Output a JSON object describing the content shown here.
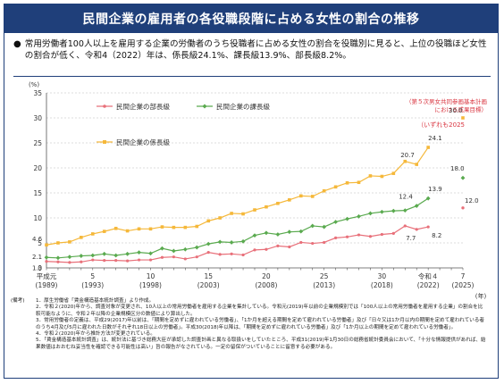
{
  "title": "民間企業の雇用者の各役職段階に占める女性の割合の推移",
  "summary": "常用労働者100人以上を雇用する企業の労働者のうち役職者に占める女性の割合を役職別に見ると、上位の役職ほど女性の割合が低く、令和4（2022）年は、係長級24.1%、課長級13.9%、部長級8.2%。",
  "chart_data": {
    "type": "line",
    "y_unit": "(%)",
    "x_unit": "(年)",
    "ylim": [
      0,
      35
    ],
    "y_ticks": [
      "0",
      "5",
      "10",
      "15",
      "20",
      "25",
      "30",
      "35"
    ],
    "x_ticks": [
      {
        "era": "平成元",
        "year": "(1989)"
      },
      {
        "era": "5",
        "year": "(1993)"
      },
      {
        "era": "10",
        "year": "(1998)"
      },
      {
        "era": "15",
        "year": "(2003)"
      },
      {
        "era": "20",
        "year": "(2008)"
      },
      {
        "era": "25",
        "year": "(2013)"
      },
      {
        "era": "30",
        "year": "(2018)"
      },
      {
        "era": "令和４",
        "year": "(2022)"
      },
      {
        "era": "7",
        "year": "(2025)"
      }
    ],
    "x": [
      1989,
      1990,
      1991,
      1992,
      1993,
      1994,
      1995,
      1996,
      1997,
      1998,
      1999,
      2000,
      2001,
      2002,
      2003,
      2004,
      2005,
      2006,
      2007,
      2008,
      2009,
      2010,
      2011,
      2012,
      2013,
      2014,
      2015,
      2016,
      2017,
      2018,
      2019,
      2020,
      2021,
      2022
    ],
    "series": [
      {
        "name": "民間企業の部長級",
        "color": "#e8707a",
        "values": [
          1.3,
          1.2,
          1.1,
          1.2,
          1.6,
          1.5,
          1.5,
          1.4,
          1.6,
          1.6,
          2.1,
          2.2,
          1.8,
          2.2,
          3.1,
          2.7,
          2.8,
          2.6,
          3.6,
          3.7,
          4.4,
          4.2,
          5.1,
          4.9,
          5.1,
          6.0,
          6.2,
          6.6,
          6.3,
          6.7,
          6.9,
          8.4,
          7.7,
          8.2
        ]
      },
      {
        "name": "民間企業の課長級",
        "color": "#5aaa4f",
        "values": [
          2.1,
          2.0,
          2.2,
          2.4,
          2.5,
          2.8,
          2.5,
          2.8,
          3.1,
          2.9,
          3.9,
          3.4,
          3.7,
          4.1,
          4.8,
          5.2,
          5.1,
          5.3,
          6.5,
          7.0,
          6.7,
          7.2,
          7.3,
          8.4,
          8.2,
          9.2,
          9.8,
          10.3,
          10.9,
          11.2,
          11.4,
          11.5,
          12.4,
          13.9
        ]
      },
      {
        "name": "民間企業の係長級",
        "color": "#f5b83a",
        "values": [
          4.6,
          5.0,
          5.2,
          6.1,
          6.8,
          7.3,
          7.9,
          7.4,
          7.8,
          7.8,
          8.2,
          8.1,
          8.1,
          8.3,
          9.4,
          10.0,
          10.9,
          10.8,
          11.6,
          12.2,
          12.9,
          13.6,
          14.4,
          14.3,
          15.4,
          16.2,
          17.0,
          17.1,
          18.4,
          18.3,
          18.9,
          21.3,
          20.7,
          24.1
        ]
      }
    ],
    "targets": {
      "note_line1": "（第５次男女共同参画基本計画",
      "note_line2": "における成果目標）",
      "note_line3": "（いずれも2025",
      "year": 2025,
      "items": [
        {
          "series": "民間企業の係長級",
          "value": 30.0,
          "label": "30.0"
        },
        {
          "series": "民間企業の課長級",
          "value": 18.0,
          "label": "18.0"
        },
        {
          "series": "民間企業の部長級",
          "value": 12.0,
          "label": "12.0"
        }
      ]
    },
    "data_labels": [
      {
        "text": "4.6",
        "series": 2,
        "index": 0,
        "dx": -16,
        "dy": -4
      },
      {
        "text": "2.1",
        "series": 1,
        "index": 0,
        "dx": -16,
        "dy": 2
      },
      {
        "text": "1.3",
        "series": 0,
        "index": 0,
        "dx": -16,
        "dy": 10
      },
      {
        "text": "20.7",
        "series": 2,
        "index": 32,
        "dx": -18,
        "dy": -8
      },
      {
        "text": "24.1",
        "series": 2,
        "index": 33,
        "dx": 0,
        "dy": -8
      },
      {
        "text": "12.4",
        "series": 1,
        "index": 32,
        "dx": -20,
        "dy": -8
      },
      {
        "text": "13.9",
        "series": 1,
        "index": 33,
        "dx": 0,
        "dy": -8
      },
      {
        "text": "7.7",
        "series": 0,
        "index": 32,
        "dx": -12,
        "dy": 12
      },
      {
        "text": "8.2",
        "series": 0,
        "index": 33,
        "dx": 4,
        "dy": 12
      }
    ]
  },
  "notes": [
    {
      "head": "(備考)",
      "text": "1．厚生労働省「賃金構造基本統計調査」より作成。"
    },
    {
      "head": "",
      "text": "2．令和２(2020)年から、調査対象が変更され、10人以上の常用労働者を雇用する企業を集計している。令和元(2019)年以前の企業規模別では「100人以上の常用労働者を雇用する企業」の割合を比較可能なように、令和２年以降の企業規模区分の数値により算出した。"
    },
    {
      "head": "",
      "text": "3．常用労働者の定義は、平成29(2017)年以前は、「期間を定めずに雇われている労働者」、「1か月を超える期間を定めて雇われている労働者」及び「日々又は1か月以内の期間を定めて雇われている者のうち4月及び5月に雇われた日数がそれぞれ18日以上の労働者」。平成30(2018)年以降は、「期間を定めずに雇われている労働者」及び「1か月以上の期間を定めて雇われている労働者」。"
    },
    {
      "head": "",
      "text": "4．令和２(2020)年から推計方法が変更されている。"
    },
    {
      "head": "",
      "text": "5．「賃金構造基本統計調査」は、統計法に基づき総務大臣が承認した調査計画と異なる取扱いをしていたところ、平成31(2019)年1月30日の総務省統計委員会において、「十分な情報提供があれば、結果数値はおおむね妥当性を確認できる可能性は高い」旨の報告がなされている。一定の留保がついていることに留意する必要がある。"
    }
  ]
}
